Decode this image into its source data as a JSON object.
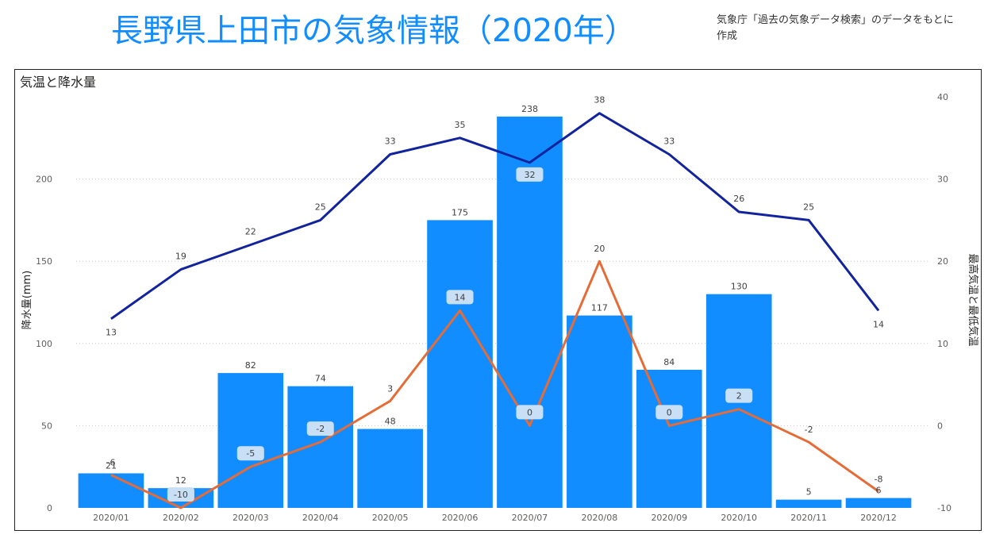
{
  "header": {
    "title": "長野県上田市の気象情報（2020年）",
    "source_note": "気象庁「過去の気象データ検索」のデータをもとに作成"
  },
  "chart_data": {
    "type": "bar",
    "title": "気温と降水量",
    "categories": [
      "2020/01",
      "2020/02",
      "2020/03",
      "2020/04",
      "2020/05",
      "2020/06",
      "2020/07",
      "2020/08",
      "2020/09",
      "2020/10",
      "2020/11",
      "2020/12"
    ],
    "ylabel": "降水量(mm)",
    "y2label": "最高気温と最低気温",
    "ylim": [
      0,
      250
    ],
    "y2lim": [
      -10,
      40
    ],
    "yticks": [
      0,
      50,
      100,
      150,
      200
    ],
    "y2ticks": [
      -10,
      0,
      10,
      20,
      30,
      40
    ],
    "grid": true,
    "colors": {
      "bars": "#118DFF",
      "max_temp": "#12239E",
      "min_temp": "#E66C37"
    },
    "series": [
      {
        "type": "bar",
        "axis": "left",
        "values": [
          21,
          12,
          82,
          74,
          48,
          175,
          238,
          117,
          84,
          130,
          5,
          6
        ]
      },
      {
        "type": "line",
        "axis": "right",
        "values": [
          13,
          19,
          22,
          25,
          33,
          35,
          32,
          38,
          33,
          26,
          25,
          14
        ]
      },
      {
        "type": "line",
        "axis": "right",
        "values": [
          -6,
          -10,
          -5,
          -2,
          3,
          14,
          0,
          20,
          0,
          2,
          -2,
          -8
        ]
      }
    ]
  }
}
